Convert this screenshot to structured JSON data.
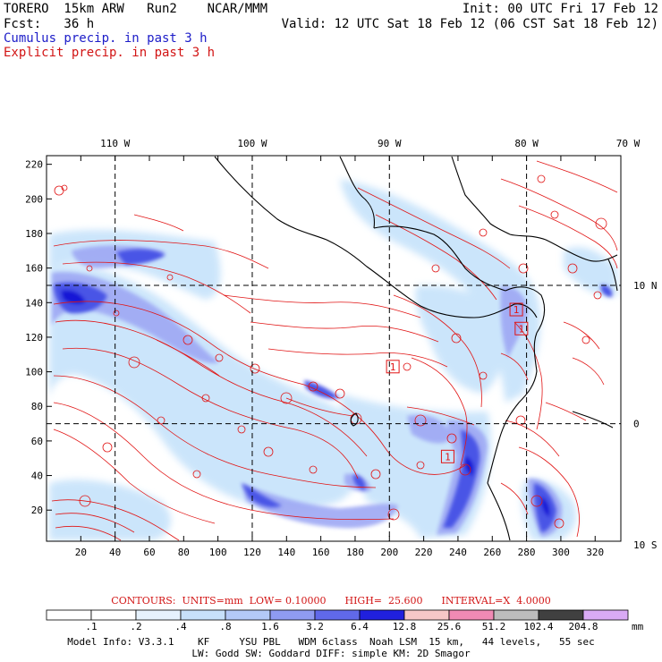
{
  "header": {
    "title": "TORERO  15km ARW   Run2    NCAR/MMM",
    "fcst": "Fcst:   36 h",
    "init": "Init: 00 UTC Fri 17 Feb 12",
    "valid": "Valid: 12 UTC Sat 18 Feb 12 (06 CST Sat 18 Feb 12)",
    "legend_cumulus": "Cumulus precip. in past 3 h",
    "legend_explicit": "Explicit precip. in past 3 h"
  },
  "map": {
    "x_ticks": [
      20,
      40,
      60,
      80,
      100,
      120,
      140,
      160,
      180,
      200,
      220,
      240,
      260,
      280,
      300,
      320
    ],
    "y_ticks": [
      20,
      40,
      60,
      80,
      100,
      120,
      140,
      160,
      180,
      200,
      220
    ],
    "x_range": [
      0,
      335
    ],
    "y_range": [
      2,
      225
    ],
    "lon_labels": [
      {
        "text": "110 W",
        "x": 40
      },
      {
        "text": "100 W",
        "x": 120
      },
      {
        "text": "90 W",
        "x": 200
      },
      {
        "text": "80 W",
        "x": 280
      },
      {
        "text": "70 W",
        "x": 360
      }
    ],
    "lat_labels": [
      {
        "text": "10 N",
        "y": 150
      },
      {
        "text": "0",
        "y": 70
      },
      {
        "text": "10 S",
        "y": 0
      }
    ],
    "lon_grid_x": [
      40,
      120,
      200,
      280
    ],
    "lat_grid_y": [
      150,
      70
    ],
    "low_markers": [
      {
        "label": "1",
        "x": 202,
        "y": 103
      },
      {
        "label": "1",
        "x": 274,
        "y": 136
      },
      {
        "label": "1",
        "x": 277,
        "y": 125
      },
      {
        "label": "1",
        "x": 234,
        "y": 51
      }
    ],
    "colors": {
      "cumulus_light": "#c9e4fb",
      "cumulus_mid": "#9ea8f4",
      "cumulus_dark": "#4a55e6",
      "cumulus_deep": "#1313d6",
      "explicit": "#e11414",
      "coast": "#000000"
    }
  },
  "contours_text": "CONTOURS:  UNITS=mm  LOW= 0.10000      HIGH=  25.600      INTERVAL=X  4.0000",
  "colorbar": {
    "labels": [
      ".1",
      ".2",
      ".4",
      ".8",
      "1.6",
      "3.2",
      "6.4",
      "12.8",
      "25.6",
      "51.2",
      "102.4",
      "204.8"
    ],
    "colors": [
      "#ffffff",
      "#ffffff",
      "#e6f2fd",
      "#c7e0fa",
      "#b3c9f7",
      "#8f9bf1",
      "#6069ea",
      "#2020de",
      "#f6c7c7",
      "#f08ab4",
      "#bcbcbc",
      "#404040",
      "#d9aaf5"
    ],
    "unit": "mm"
  },
  "model_info_1": "Model Info: V3.3.1    KF     YSU PBL   WDM 6class  Noah LSM  15 km,   44 levels,   55 sec",
  "model_info_2": "LW: Godd SW: Goddard DIFF: simple KM: 2D Smagor"
}
